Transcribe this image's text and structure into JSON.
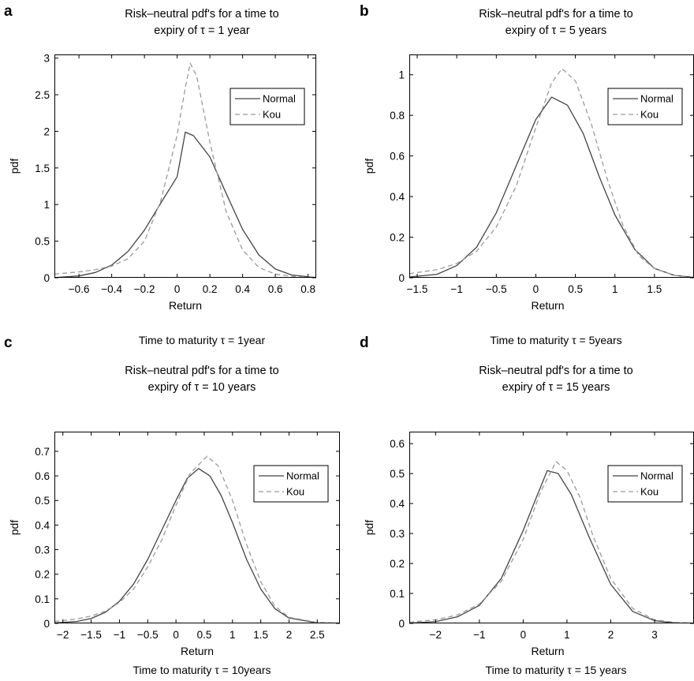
{
  "panels": [
    {
      "letter": "a",
      "title1": "Risk–neutral pdf's for a time to",
      "title2": "expiry of τ = 1 year",
      "caption": "Time to maturity τ = 1year"
    },
    {
      "letter": "b",
      "title1": "Risk–neutral pdf's for a time to",
      "title2": "expiry of τ = 5 years",
      "caption": "Time to maturity τ = 5years"
    },
    {
      "letter": "c",
      "title1": "Risk–neutral pdf's for a time to",
      "title2": "expiry of τ = 10 years",
      "caption": "Time to maturity τ = 10years"
    },
    {
      "letter": "d",
      "title1": "Risk–neutral pdf's for a time to",
      "title2": "expiry of τ = 15 years",
      "caption": "Time to maturity τ = 15 years"
    }
  ],
  "chart_data": [
    {
      "type": "line",
      "title": "Risk–neutral pdf's for a time to expiry of τ = 1 year",
      "xlabel": "Return",
      "ylabel": "pdf",
      "xlim": [
        -0.75,
        0.85
      ],
      "ylim": [
        0,
        3.05
      ],
      "xticks": [
        -0.6,
        -0.4,
        -0.2,
        0,
        0.2,
        0.4,
        0.6,
        0.8
      ],
      "xtick_labels": [
        "−0.6",
        "−0.4",
        "−0.2",
        "0",
        "0.2",
        "0.4",
        "0.6",
        "0.8"
      ],
      "yticks": [
        0,
        0.5,
        1,
        1.5,
        2,
        2.5,
        3
      ],
      "ytick_labels": [
        "0",
        "0.5",
        "1",
        "1.5",
        "2",
        "2.5",
        "3"
      ],
      "legend": "top-right",
      "series": [
        {
          "name": "Normal",
          "style": "solid",
          "color": "#444444",
          "x": [
            -0.75,
            -0.6,
            -0.5,
            -0.4,
            -0.3,
            -0.2,
            -0.1,
            0,
            0.05,
            0.1,
            0.2,
            0.3,
            0.4,
            0.5,
            0.6,
            0.7,
            0.85
          ],
          "y": [
            0.003,
            0.025,
            0.072,
            0.173,
            0.36,
            0.65,
            1.02,
            1.38,
            1.99,
            1.94,
            1.65,
            1.15,
            0.66,
            0.31,
            0.12,
            0.038,
            0.003
          ]
        },
        {
          "name": "Kou",
          "style": "dashed",
          "color": "#9a9a9a",
          "x": [
            -0.75,
            -0.6,
            -0.5,
            -0.4,
            -0.3,
            -0.2,
            -0.1,
            0,
            0.05,
            0.08,
            0.12,
            0.2,
            0.3,
            0.4,
            0.5,
            0.6,
            0.7,
            0.85
          ],
          "y": [
            0.05,
            0.08,
            0.11,
            0.16,
            0.26,
            0.5,
            1.05,
            1.95,
            2.6,
            2.93,
            2.75,
            1.85,
            0.9,
            0.38,
            0.14,
            0.05,
            0.02,
            0.005
          ]
        }
      ]
    },
    {
      "type": "line",
      "title": "Risk–neutral pdf's for a time to expiry of τ = 5 years",
      "xlabel": "Return",
      "ylabel": "pdf",
      "xlim": [
        -1.6,
        2.0
      ],
      "ylim": [
        0,
        1.1
      ],
      "xticks": [
        -1.5,
        -1,
        -0.5,
        0,
        0.5,
        1,
        1.5
      ],
      "xtick_labels": [
        "−1.5",
        "−1",
        "−0.5",
        "0",
        "0.5",
        "1",
        "1.5"
      ],
      "yticks": [
        0,
        0.2,
        0.4,
        0.6,
        0.8,
        1
      ],
      "ytick_labels": [
        "0",
        "0.2",
        "0.4",
        "0.6",
        "0.8",
        "1"
      ],
      "legend": "top-right",
      "series": [
        {
          "name": "Normal",
          "style": "solid",
          "color": "#444444",
          "x": [
            -1.6,
            -1.25,
            -1.0,
            -0.75,
            -0.5,
            -0.25,
            0,
            0.2,
            0.4,
            0.6,
            0.8,
            1.0,
            1.25,
            1.5,
            1.75,
            2.0
          ],
          "y": [
            0.004,
            0.017,
            0.06,
            0.15,
            0.32,
            0.55,
            0.78,
            0.89,
            0.85,
            0.71,
            0.5,
            0.31,
            0.14,
            0.046,
            0.012,
            0.002
          ]
        },
        {
          "name": "Kou",
          "style": "dashed",
          "color": "#9a9a9a",
          "x": [
            -1.6,
            -1.25,
            -1.0,
            -0.75,
            -0.5,
            -0.25,
            0,
            0.2,
            0.33,
            0.5,
            0.7,
            0.9,
            1.1,
            1.3,
            1.5,
            1.75,
            2.0
          ],
          "y": [
            0.02,
            0.04,
            0.07,
            0.13,
            0.25,
            0.45,
            0.74,
            0.96,
            1.03,
            0.97,
            0.76,
            0.49,
            0.26,
            0.11,
            0.045,
            0.012,
            0.003
          ]
        }
      ]
    },
    {
      "type": "line",
      "title": "Risk–neutral pdf's for a time to expiry of τ = 10 years",
      "xlabel": "Return",
      "ylabel": "pdf",
      "xlim": [
        -2.15,
        2.9
      ],
      "ylim": [
        0,
        0.78
      ],
      "xticks": [
        -2,
        -1.5,
        -1,
        -0.5,
        0,
        0.5,
        1,
        1.5,
        2,
        2.5
      ],
      "xtick_labels": [
        "−2",
        "−1.5",
        "−1",
        "−0.5",
        "0",
        "0.5",
        "1",
        "1.5",
        "2",
        "2.5"
      ],
      "yticks": [
        0,
        0.1,
        0.2,
        0.3,
        0.4,
        0.5,
        0.6,
        0.7
      ],
      "ytick_labels": [
        "0",
        "0.1",
        "0.2",
        "0.3",
        "0.4",
        "0.5",
        "0.6",
        "0.7"
      ],
      "legend": "top-right",
      "series": [
        {
          "name": "Normal",
          "style": "solid",
          "color": "#444444",
          "x": [
            -2.15,
            -1.75,
            -1.5,
            -1.25,
            -1.0,
            -0.75,
            -0.5,
            -0.25,
            0,
            0.2,
            0.4,
            0.6,
            0.8,
            1.0,
            1.25,
            1.5,
            1.75,
            2.0,
            2.5,
            2.9
          ],
          "y": [
            0.002,
            0.008,
            0.02,
            0.045,
            0.09,
            0.16,
            0.26,
            0.38,
            0.5,
            0.59,
            0.63,
            0.6,
            0.52,
            0.41,
            0.26,
            0.14,
            0.06,
            0.022,
            0.002,
            0.0002
          ]
        },
        {
          "name": "Kou",
          "style": "dashed",
          "color": "#9a9a9a",
          "x": [
            -2.15,
            -1.75,
            -1.5,
            -1.25,
            -1.0,
            -0.75,
            -0.5,
            -0.25,
            0,
            0.25,
            0.55,
            0.75,
            1.0,
            1.25,
            1.5,
            1.75,
            2.0,
            2.5,
            2.9
          ],
          "y": [
            0.008,
            0.018,
            0.03,
            0.05,
            0.085,
            0.14,
            0.23,
            0.34,
            0.48,
            0.61,
            0.68,
            0.64,
            0.5,
            0.32,
            0.17,
            0.07,
            0.025,
            0.004,
            0.001
          ]
        }
      ]
    },
    {
      "type": "line",
      "title": "Risk–neutral pdf's for a time to expiry of τ = 15 years",
      "xlabel": "Return",
      "ylabel": "pdf",
      "xlim": [
        -2.6,
        3.9
      ],
      "ylim": [
        0,
        0.64
      ],
      "xticks": [
        -2,
        -1,
        0,
        1,
        2,
        3
      ],
      "xtick_labels": [
        "−2",
        "−1",
        "0",
        "1",
        "2",
        "3"
      ],
      "yticks": [
        0,
        0.1,
        0.2,
        0.3,
        0.4,
        0.5,
        0.6
      ],
      "ytick_labels": [
        "0",
        "0.1",
        "0.2",
        "0.3",
        "0.4",
        "0.5",
        "0.6"
      ],
      "legend": "top-right",
      "series": [
        {
          "name": "Normal",
          "style": "solid",
          "color": "#444444",
          "x": [
            -2.6,
            -2.0,
            -1.5,
            -1.0,
            -0.5,
            0,
            0.3,
            0.55,
            0.8,
            1.1,
            1.5,
            2.0,
            2.5,
            3.0,
            3.5,
            3.9
          ],
          "y": [
            0.001,
            0.006,
            0.022,
            0.06,
            0.15,
            0.31,
            0.42,
            0.51,
            0.5,
            0.43,
            0.29,
            0.13,
            0.04,
            0.009,
            0.001,
            0.0002
          ]
        },
        {
          "name": "Kou",
          "style": "dashed",
          "color": "#9a9a9a",
          "x": [
            -2.6,
            -2.0,
            -1.5,
            -1.0,
            -0.5,
            0,
            0.4,
            0.75,
            1.0,
            1.3,
            1.6,
            2.0,
            2.5,
            3.0,
            3.5,
            3.9
          ],
          "y": [
            0.004,
            0.012,
            0.028,
            0.065,
            0.14,
            0.28,
            0.44,
            0.54,
            0.51,
            0.42,
            0.29,
            0.15,
            0.05,
            0.012,
            0.003,
            0.001
          ]
        }
      ]
    }
  ]
}
